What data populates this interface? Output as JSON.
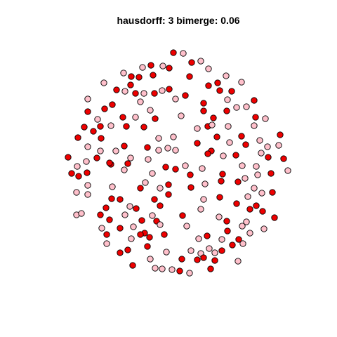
{
  "chart_data": {
    "type": "scatter",
    "title": "hausdorff: 3 bimerge: 0.06",
    "xlabel": "",
    "ylabel": "",
    "grid": false,
    "axes_visible": false,
    "marker": "filled circle with black outline",
    "xlim": [
      90,
      420
    ],
    "ylim": [
      70,
      395
    ],
    "colors": {
      "red": "#ee0000",
      "pink": "#ffc0cb",
      "outline": "#000000"
    },
    "points": [
      [
        247,
        75,
        "red"
      ],
      [
        261,
        76,
        "pink"
      ],
      [
        286,
        87,
        "pink"
      ],
      [
        273,
        89,
        "red"
      ],
      [
        203,
        96,
        "pink"
      ],
      [
        215,
        93,
        "red"
      ],
      [
        232,
        94,
        "pink"
      ],
      [
        297,
        98,
        "pink"
      ],
      [
        241,
        97,
        "red"
      ],
      [
        176,
        104,
        "pink"
      ],
      [
        187,
        109,
        "red"
      ],
      [
        198,
        110,
        "red"
      ],
      [
        218,
        107,
        "red"
      ],
      [
        270,
        109,
        "red"
      ],
      [
        322,
        108,
        "pink"
      ],
      [
        148,
        118,
        "pink"
      ],
      [
        186,
        121,
        "red"
      ],
      [
        297,
        122,
        "red"
      ],
      [
        310,
        118,
        "red"
      ],
      [
        344,
        117,
        "pink"
      ],
      [
        166,
        128,
        "red"
      ],
      [
        178,
        130,
        "pink"
      ],
      [
        193,
        133,
        "red"
      ],
      [
        205,
        133,
        "pink"
      ],
      [
        220,
        133,
        "red"
      ],
      [
        231,
        129,
        "pink"
      ],
      [
        241,
        127,
        "red"
      ],
      [
        264,
        136,
        "red"
      ],
      [
        313,
        129,
        "red"
      ],
      [
        330,
        130,
        "red"
      ],
      [
        125,
        141,
        "pink"
      ],
      [
        160,
        149,
        "red"
      ],
      [
        200,
        145,
        "pink"
      ],
      [
        250,
        141,
        "pink"
      ],
      [
        290,
        147,
        "red"
      ],
      [
        324,
        142,
        "pink"
      ],
      [
        362,
        143,
        "red"
      ],
      [
        149,
        155,
        "red"
      ],
      [
        125,
        159,
        "red"
      ],
      [
        214,
        157,
        "pink"
      ],
      [
        290,
        158,
        "red"
      ],
      [
        323,
        158,
        "red"
      ],
      [
        337,
        153,
        "pink"
      ],
      [
        351,
        152,
        "pink"
      ],
      [
        175,
        167,
        "red"
      ],
      [
        193,
        167,
        "pink"
      ],
      [
        221,
        169,
        "red"
      ],
      [
        258,
        165,
        "pink"
      ],
      [
        364,
        167,
        "red"
      ],
      [
        378,
        169,
        "pink"
      ],
      [
        139,
        170,
        "pink"
      ],
      [
        304,
        168,
        "red"
      ],
      [
        120,
        181,
        "red"
      ],
      [
        143,
        180,
        "red"
      ],
      [
        158,
        179,
        "pink"
      ],
      [
        180,
        180,
        "red"
      ],
      [
        205,
        181,
        "red"
      ],
      [
        281,
        183,
        "pink"
      ],
      [
        296,
        180,
        "red"
      ],
      [
        302,
        178,
        "pink"
      ],
      [
        325,
        180,
        "pink"
      ],
      [
        362,
        179,
        "pink"
      ],
      [
        133,
        187,
        "red"
      ],
      [
        111,
        196,
        "red"
      ],
      [
        144,
        197,
        "red"
      ],
      [
        226,
        197,
        "pink"
      ],
      [
        247,
        195,
        "pink"
      ],
      [
        281,
        204,
        "red"
      ],
      [
        309,
        195,
        "red"
      ],
      [
        344,
        194,
        "red"
      ],
      [
        327,
        203,
        "pink"
      ],
      [
        399,
        192,
        "red"
      ],
      [
        350,
        206,
        "red"
      ],
      [
        370,
        200,
        "pink"
      ],
      [
        125,
        209,
        "pink"
      ],
      [
        177,
        208,
        "red"
      ],
      [
        210,
        210,
        "red"
      ],
      [
        239,
        211,
        "pink"
      ],
      [
        301,
        215,
        "red"
      ],
      [
        381,
        209,
        "pink"
      ],
      [
        143,
        215,
        "pink"
      ],
      [
        165,
        215,
        "pink"
      ],
      [
        226,
        214,
        "pink"
      ],
      [
        250,
        214,
        "pink"
      ],
      [
        296,
        219,
        "red"
      ],
      [
        318,
        222,
        "pink"
      ],
      [
        336,
        221,
        "red"
      ],
      [
        372,
        218,
        "pink"
      ],
      [
        397,
        207,
        "pink"
      ],
      [
        97,
        224,
        "red"
      ],
      [
        138,
        225,
        "red"
      ],
      [
        186,
        225,
        "pink"
      ],
      [
        211,
        227,
        "pink"
      ],
      [
        382,
        224,
        "red"
      ],
      [
        404,
        226,
        "red"
      ],
      [
        123,
        230,
        "pink"
      ],
      [
        158,
        234,
        "red"
      ],
      [
        182,
        233,
        "red"
      ],
      [
        110,
        237,
        "pink"
      ],
      [
        156,
        232,
        "red"
      ],
      [
        236,
        238,
        "red"
      ],
      [
        264,
        236,
        "pink"
      ],
      [
        345,
        236,
        "pink"
      ],
      [
        365,
        237,
        "pink"
      ],
      [
        250,
        241,
        "red"
      ],
      [
        288,
        240,
        "pink"
      ],
      [
        124,
        246,
        "red"
      ],
      [
        177,
        242,
        "pink"
      ],
      [
        102,
        247,
        "red"
      ],
      [
        112,
        251,
        "red"
      ],
      [
        217,
        247,
        "pink"
      ],
      [
        271,
        249,
        "red"
      ],
      [
        317,
        248,
        "red"
      ],
      [
        386,
        247,
        "red"
      ],
      [
        410,
        243,
        "pink"
      ],
      [
        367,
        249,
        "pink"
      ],
      [
        207,
        260,
        "pink"
      ],
      [
        240,
        263,
        "red"
      ],
      [
        292,
        262,
        "pink"
      ],
      [
        315,
        258,
        "red"
      ],
      [
        339,
        259,
        "red"
      ],
      [
        349,
        254,
        "pink"
      ],
      [
        125,
        264,
        "pink"
      ],
      [
        160,
        266,
        "pink"
      ],
      [
        200,
        268,
        "red"
      ],
      [
        272,
        267,
        "red"
      ],
      [
        362,
        268,
        "pink"
      ],
      [
        228,
        268,
        "pink"
      ],
      [
        109,
        274,
        "pink"
      ],
      [
        125,
        277,
        "pink"
      ],
      [
        240,
        277,
        "red"
      ],
      [
        388,
        274,
        "red"
      ],
      [
        159,
        283,
        "red"
      ],
      [
        171,
        284,
        "red"
      ],
      [
        220,
        284,
        "red"
      ],
      [
        313,
        281,
        "red"
      ],
      [
        353,
        280,
        "pink"
      ],
      [
        373,
        275,
        "pink"
      ],
      [
        290,
        284,
        "pink"
      ],
      [
        337,
        290,
        "red"
      ],
      [
        365,
        293,
        "red"
      ],
      [
        151,
        296,
        "red"
      ],
      [
        185,
        294,
        "pink"
      ],
      [
        228,
        293,
        "red"
      ],
      [
        194,
        297,
        "red"
      ],
      [
        356,
        298,
        "red"
      ],
      [
        374,
        301,
        "red"
      ],
      [
        109,
        306,
        "pink"
      ],
      [
        116,
        304,
        "pink"
      ],
      [
        143,
        306,
        "red"
      ],
      [
        178,
        306,
        "pink"
      ],
      [
        217,
        307,
        "pink"
      ],
      [
        260,
        307,
        "red"
      ],
      [
        286,
        298,
        "pink"
      ],
      [
        312,
        309,
        "pink"
      ],
      [
        391,
        310,
        "red"
      ],
      [
        156,
        313,
        "red"
      ],
      [
        202,
        314,
        "red"
      ],
      [
        223,
        315,
        "red"
      ],
      [
        228,
        320,
        "pink"
      ],
      [
        323,
        315,
        "red"
      ],
      [
        351,
        316,
        "pink"
      ],
      [
        145,
        325,
        "pink"
      ],
      [
        171,
        325,
        "red"
      ],
      [
        190,
        323,
        "pink"
      ],
      [
        266,
        322,
        "pink"
      ],
      [
        345,
        322,
        "pink"
      ],
      [
        376,
        326,
        "pink"
      ],
      [
        324,
        329,
        "red"
      ],
      [
        206,
        332,
        "red"
      ],
      [
        152,
        334,
        "red"
      ],
      [
        200,
        334,
        "red"
      ],
      [
        234,
        334,
        "red"
      ],
      [
        295,
        336,
        "red"
      ],
      [
        356,
        332,
        "pink"
      ],
      [
        187,
        340,
        "pink"
      ],
      [
        283,
        340,
        "pink"
      ],
      [
        316,
        341,
        "pink"
      ],
      [
        340,
        341,
        "red"
      ],
      [
        152,
        347,
        "pink"
      ],
      [
        213,
        338,
        "red"
      ],
      [
        346,
        347,
        "pink"
      ],
      [
        331,
        349,
        "red"
      ],
      [
        210,
        351,
        "red"
      ],
      [
        182,
        356,
        "red"
      ],
      [
        298,
        354,
        "pink"
      ],
      [
        272,
        357,
        "pink"
      ],
      [
        171,
        360,
        "red"
      ],
      [
        237,
        359,
        "pink"
      ],
      [
        286,
        361,
        "pink"
      ],
      [
        316,
        357,
        "red"
      ],
      [
        306,
        360,
        "pink"
      ],
      [
        214,
        369,
        "pink"
      ],
      [
        259,
        369,
        "red"
      ],
      [
        281,
        370,
        "red"
      ],
      [
        290,
        367,
        "red"
      ],
      [
        306,
        371,
        "red"
      ],
      [
        339,
        372,
        "pink"
      ],
      [
        189,
        378,
        "red"
      ],
      [
        221,
        382,
        "pink"
      ],
      [
        231,
        383,
        "pink"
      ],
      [
        245,
        384,
        "pink"
      ],
      [
        256,
        386,
        "red"
      ],
      [
        270,
        389,
        "pink"
      ],
      [
        300,
        383,
        "red"
      ]
    ]
  }
}
